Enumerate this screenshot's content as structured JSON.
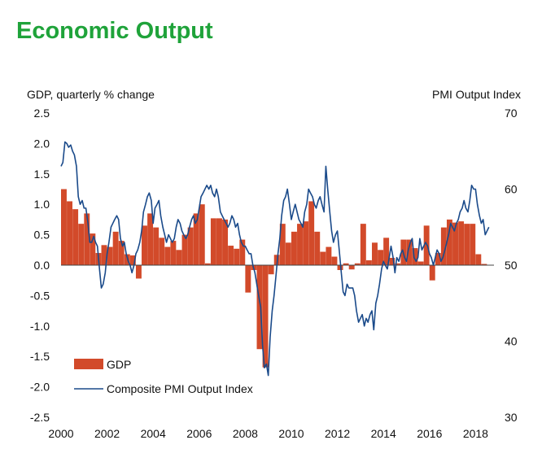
{
  "header": {
    "title": "Economic Output"
  },
  "chart_data": {
    "type": "bar",
    "title": "Economic Output",
    "ylabel_left": "GDP, quarterly % change",
    "ylabel_right": "PMI Output Index",
    "ylim_left": [
      -2.5,
      2.5
    ],
    "ylim_right": [
      30,
      70
    ],
    "xlim": [
      2000,
      2018.8
    ],
    "yticks_left": [
      "2.5",
      "2.0",
      "1.5",
      "1.0",
      "0.5",
      "0.0",
      "-0.5",
      "-1.0",
      "-1.5",
      "-2.0",
      "-2.5"
    ],
    "yticks_right": [
      "70",
      "60",
      "50",
      "40",
      "30"
    ],
    "xticks": [
      "2000",
      "2002",
      "2004",
      "2006",
      "2008",
      "2010",
      "2012",
      "2014",
      "2016",
      "2018"
    ],
    "legend": [
      "GDP",
      "Composite PMI Output Index"
    ],
    "colors": {
      "gdp": "#d24a2a",
      "pmi": "#1a4a8a"
    },
    "series": [
      {
        "name": "GDP",
        "kind": "bar",
        "axis": "left",
        "x": [
          2000.0,
          2000.25,
          2000.5,
          2000.75,
          2001.0,
          2001.25,
          2001.5,
          2001.75,
          2002.0,
          2002.25,
          2002.5,
          2002.75,
          2003.0,
          2003.25,
          2003.5,
          2003.75,
          2004.0,
          2004.25,
          2004.5,
          2004.75,
          2005.0,
          2005.25,
          2005.5,
          2005.75,
          2006.0,
          2006.25,
          2006.5,
          2006.75,
          2007.0,
          2007.25,
          2007.5,
          2007.75,
          2008.0,
          2008.25,
          2008.5,
          2008.75,
          2009.0,
          2009.25,
          2009.5,
          2009.75,
          2010.0,
          2010.25,
          2010.5,
          2010.75,
          2011.0,
          2011.25,
          2011.5,
          2011.75,
          2012.0,
          2012.25,
          2012.5,
          2012.75,
          2013.0,
          2013.25,
          2013.5,
          2013.75,
          2014.0,
          2014.25,
          2014.5,
          2014.75,
          2015.0,
          2015.25,
          2015.5,
          2015.75,
          2016.0,
          2016.25,
          2016.5,
          2016.75,
          2017.0,
          2017.25,
          2017.5,
          2017.75,
          2018.0,
          2018.25
        ],
        "values": [
          1.25,
          1.05,
          0.92,
          0.68,
          0.85,
          0.52,
          0.2,
          0.33,
          0.3,
          0.55,
          0.4,
          0.18,
          0.16,
          -0.22,
          0.65,
          0.85,
          0.62,
          0.45,
          0.3,
          0.4,
          0.25,
          0.5,
          0.62,
          0.85,
          1.0,
          0.03,
          0.77,
          0.77,
          0.75,
          0.32,
          0.27,
          0.42,
          -0.45,
          -0.08,
          -1.38,
          -1.68,
          -0.15,
          0.17,
          0.68,
          0.37,
          0.55,
          0.68,
          0.72,
          1.05,
          0.55,
          0.22,
          0.3,
          0.14,
          -0.08,
          0.03,
          -0.07,
          0.03,
          0.68,
          0.08,
          0.37,
          0.25,
          0.45,
          0.12,
          0.03,
          0.42,
          0.42,
          0.28,
          0.06,
          0.65,
          -0.25,
          0.2,
          0.62,
          0.75,
          0.7,
          0.72,
          0.68,
          0.68,
          0.18,
          0.02
        ]
      },
      {
        "name": "Composite PMI Output Index",
        "kind": "line",
        "axis": "right",
        "x": [
          2000.0,
          2000.08,
          2000.17,
          2000.25,
          2000.33,
          2000.42,
          2000.5,
          2000.58,
          2000.67,
          2000.75,
          2000.83,
          2000.92,
          2001.0,
          2001.08,
          2001.17,
          2001.25,
          2001.33,
          2001.42,
          2001.5,
          2001.58,
          2001.67,
          2001.75,
          2001.83,
          2001.92,
          2002.0,
          2002.08,
          2002.17,
          2002.25,
          2002.33,
          2002.42,
          2002.5,
          2002.58,
          2002.67,
          2002.75,
          2002.83,
          2002.92,
          2003.0,
          2003.08,
          2003.17,
          2003.25,
          2003.33,
          2003.42,
          2003.5,
          2003.58,
          2003.67,
          2003.75,
          2003.83,
          2003.92,
          2004.0,
          2004.08,
          2004.17,
          2004.25,
          2004.33,
          2004.42,
          2004.5,
          2004.58,
          2004.67,
          2004.75,
          2004.83,
          2004.92,
          2005.0,
          2005.08,
          2005.17,
          2005.25,
          2005.33,
          2005.42,
          2005.5,
          2005.58,
          2005.67,
          2005.75,
          2005.83,
          2005.92,
          2006.0,
          2006.08,
          2006.17,
          2006.25,
          2006.33,
          2006.42,
          2006.5,
          2006.58,
          2006.67,
          2006.75,
          2006.83,
          2006.92,
          2007.0,
          2007.08,
          2007.17,
          2007.25,
          2007.33,
          2007.42,
          2007.5,
          2007.58,
          2007.67,
          2007.75,
          2007.83,
          2007.92,
          2008.0,
          2008.08,
          2008.17,
          2008.25,
          2008.33,
          2008.42,
          2008.5,
          2008.58,
          2008.67,
          2008.75,
          2008.83,
          2008.92,
          2009.0,
          2009.08,
          2009.17,
          2009.25,
          2009.33,
          2009.42,
          2009.5,
          2009.58,
          2009.67,
          2009.75,
          2009.83,
          2009.92,
          2010.0,
          2010.08,
          2010.17,
          2010.25,
          2010.33,
          2010.42,
          2010.5,
          2010.58,
          2010.67,
          2010.75,
          2010.83,
          2010.92,
          2011.0,
          2011.08,
          2011.17,
          2011.25,
          2011.33,
          2011.42,
          2011.5,
          2011.58,
          2011.67,
          2011.75,
          2011.83,
          2011.92,
          2012.0,
          2012.08,
          2012.17,
          2012.25,
          2012.33,
          2012.42,
          2012.5,
          2012.58,
          2012.67,
          2012.75,
          2012.83,
          2012.92,
          2013.0,
          2013.08,
          2013.17,
          2013.25,
          2013.33,
          2013.42,
          2013.5,
          2013.58,
          2013.67,
          2013.75,
          2013.83,
          2013.92,
          2014.0,
          2014.08,
          2014.17,
          2014.25,
          2014.33,
          2014.42,
          2014.5,
          2014.58,
          2014.67,
          2014.75,
          2014.83,
          2014.92,
          2015.0,
          2015.08,
          2015.17,
          2015.25,
          2015.33,
          2015.42,
          2015.5,
          2015.58,
          2015.67,
          2015.75,
          2015.83,
          2015.92,
          2016.0,
          2016.08,
          2016.17,
          2016.25,
          2016.33,
          2016.42,
          2016.5,
          2016.58,
          2016.67,
          2016.75,
          2016.83,
          2016.92,
          2017.0,
          2017.08,
          2017.17,
          2017.25,
          2017.33,
          2017.42,
          2017.5,
          2017.58,
          2017.67,
          2017.75,
          2017.83,
          2017.92,
          2018.0,
          2018.08,
          2018.17,
          2018.25,
          2018.33,
          2018.42,
          2018.5,
          2018.58
        ],
        "values": [
          63.0,
          63.5,
          66.2,
          66.0,
          65.5,
          65.8,
          65.0,
          64.5,
          63.0,
          59.0,
          58.0,
          58.5,
          57.5,
          57.5,
          55.5,
          53.0,
          53.0,
          53.8,
          53.0,
          52.5,
          49.5,
          47.0,
          47.5,
          49.0,
          51.5,
          53.0,
          55.0,
          55.5,
          56.0,
          56.5,
          56.0,
          53.5,
          52.5,
          53.0,
          51.5,
          50.5,
          50.0,
          49.0,
          50.0,
          51.5,
          52.0,
          53.0,
          54.5,
          57.0,
          58.0,
          59.0,
          59.5,
          58.5,
          55.5,
          57.5,
          58.0,
          58.5,
          56.5,
          55.0,
          54.0,
          53.0,
          54.0,
          53.5,
          53.0,
          53.5,
          55.0,
          56.0,
          55.5,
          54.5,
          54.0,
          53.5,
          54.0,
          55.0,
          56.0,
          56.5,
          55.5,
          56.0,
          57.5,
          59.0,
          59.5,
          60.0,
          60.5,
          60.0,
          60.5,
          59.5,
          59.0,
          60.0,
          59.0,
          57.0,
          56.5,
          56.0,
          55.5,
          55.0,
          55.5,
          56.5,
          56.0,
          55.0,
          55.5,
          54.0,
          53.0,
          52.5,
          52.5,
          52.0,
          51.5,
          51.5,
          50.0,
          49.0,
          47.5,
          46.0,
          44.5,
          39.5,
          36.5,
          37.0,
          35.5,
          40.5,
          44.0,
          46.0,
          48.5,
          51.5,
          53.5,
          56.5,
          58.5,
          59.0,
          60.0,
          58.0,
          56.0,
          57.0,
          58.0,
          57.0,
          56.0,
          55.5,
          55.0,
          57.0,
          58.0,
          60.0,
          59.5,
          59.0,
          58.0,
          57.5,
          58.5,
          59.0,
          58.0,
          57.0,
          63.0,
          60.0,
          57.0,
          54.5,
          53.0,
          54.0,
          54.5,
          52.0,
          49.0,
          46.5,
          46.0,
          47.5,
          47.0,
          47.0,
          47.0,
          46.0,
          44.0,
          42.5,
          43.0,
          43.5,
          42.0,
          43.0,
          42.5,
          43.5,
          44.0,
          41.5,
          45.0,
          46.0,
          47.5,
          49.5,
          50.5,
          50.0,
          49.5,
          51.0,
          52.5,
          51.0,
          49.0,
          51.0,
          50.5,
          51.5,
          52.0,
          51.0,
          50.5,
          52.0,
          53.0,
          53.5,
          51.0,
          50.5,
          51.0,
          53.5,
          52.0,
          52.5,
          53.0,
          52.5,
          51.5,
          51.0,
          50.0,
          51.0,
          52.0,
          51.5,
          50.5,
          51.0,
          52.0,
          53.0,
          54.0,
          55.5,
          55.0,
          54.5,
          55.5,
          56.0,
          57.0,
          57.5,
          58.5,
          57.5,
          57.0,
          58.5,
          60.5,
          60.0,
          60.0,
          58.0,
          56.5,
          55.5,
          56.0,
          54.0,
          54.5,
          55.0
        ]
      }
    ]
  }
}
